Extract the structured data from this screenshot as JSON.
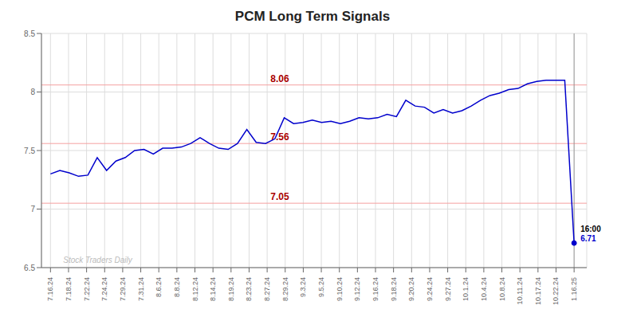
{
  "chart_data": {
    "type": "line",
    "title": "PCM Long Term Signals",
    "x": [
      0,
      0.517857,
      1.035714,
      1.553571,
      2.071429,
      2.589286,
      3.107143,
      3.625,
      4.142857,
      4.660714,
      5.178571,
      5.696429,
      6.214286,
      6.732143,
      7.25,
      7.767857,
      8.285714,
      8.803571,
      9.321429,
      9.839286,
      10.357143,
      10.875,
      11.392857,
      11.910714,
      12.428571,
      12.946429,
      13.464286,
      13.982143,
      14.5,
      15.017857,
      15.535714,
      16.053571,
      16.571429,
      17.089286,
      17.607143,
      18.125,
      18.642857,
      19.160714,
      19.678571,
      20.196429,
      20.714286,
      21.232143,
      21.75,
      22.267857,
      22.785714,
      23.303571,
      23.821429,
      24.339286,
      24.857143,
      25.375,
      25.892857,
      26.410714,
      26.928571,
      27.446429,
      27.964286,
      28.482143,
      29
    ],
    "values": [
      7.3,
      7.33,
      7.31,
      7.28,
      7.29,
      7.44,
      7.33,
      7.41,
      7.44,
      7.5,
      7.51,
      7.47,
      7.52,
      7.52,
      7.53,
      7.56,
      7.61,
      7.56,
      7.52,
      7.51,
      7.56,
      7.68,
      7.57,
      7.56,
      7.6,
      7.78,
      7.73,
      7.74,
      7.76,
      7.74,
      7.75,
      7.73,
      7.75,
      7.78,
      7.77,
      7.78,
      7.81,
      7.79,
      7.93,
      7.88,
      7.87,
      7.82,
      7.85,
      7.82,
      7.84,
      7.88,
      7.93,
      7.97,
      7.99,
      8.02,
      8.03,
      8.07,
      8.09,
      8.1,
      8.1,
      8.1,
      6.71
    ],
    "color": "#0000cc",
    "xlim": [
      -0.5,
      29.7
    ],
    "xticks": [
      {
        "value": 0,
        "label": "7.16.24"
      },
      {
        "value": 1,
        "label": "7.18.24"
      },
      {
        "value": 2,
        "label": "7.22.24"
      },
      {
        "value": 3,
        "label": "7.24.24"
      },
      {
        "value": 4,
        "label": "7.29.24"
      },
      {
        "value": 5,
        "label": "7.31.24"
      },
      {
        "value": 6,
        "label": "8.6.24"
      },
      {
        "value": 7,
        "label": "8.8.24"
      },
      {
        "value": 8,
        "label": "8.12.24"
      },
      {
        "value": 9,
        "label": "8.14.24"
      },
      {
        "value": 10,
        "label": "8.19.24"
      },
      {
        "value": 11,
        "label": "8.23.24"
      },
      {
        "value": 12,
        "label": "8.27.24"
      },
      {
        "value": 13,
        "label": "8.29.24"
      },
      {
        "value": 14,
        "label": "9.3.24"
      },
      {
        "value": 15,
        "label": "9.5.24"
      },
      {
        "value": 16,
        "label": "9.10.24"
      },
      {
        "value": 17,
        "label": "9.12.24"
      },
      {
        "value": 18,
        "label": "9.16.24"
      },
      {
        "value": 19,
        "label": "9.18.24"
      },
      {
        "value": 20,
        "label": "9.20.24"
      },
      {
        "value": 21,
        "label": "9.24.24"
      },
      {
        "value": 22,
        "label": "9.27.24"
      },
      {
        "value": 23,
        "label": "10.1.24"
      },
      {
        "value": 24,
        "label": "10.4.24"
      },
      {
        "value": 25,
        "label": "10.8.24"
      },
      {
        "value": 26,
        "label": "10.11.24"
      },
      {
        "value": 27,
        "label": "10.17.24"
      },
      {
        "value": 28,
        "label": "10.22.24"
      },
      {
        "value": 29,
        "label": "1.16.25"
      }
    ],
    "ylim": [
      6.5,
      8.5
    ],
    "yticks": [
      6.5,
      7.0,
      7.5,
      8.0,
      8.5
    ],
    "grid": true,
    "reference_lines": [
      {
        "y": 8.06,
        "label": "8.06"
      },
      {
        "y": 7.56,
        "label": "7.56"
      },
      {
        "y": 7.05,
        "label": "7.05"
      }
    ],
    "annotations": [
      "16:00",
      "6.71",
      "Stock Traders Daily"
    ]
  }
}
